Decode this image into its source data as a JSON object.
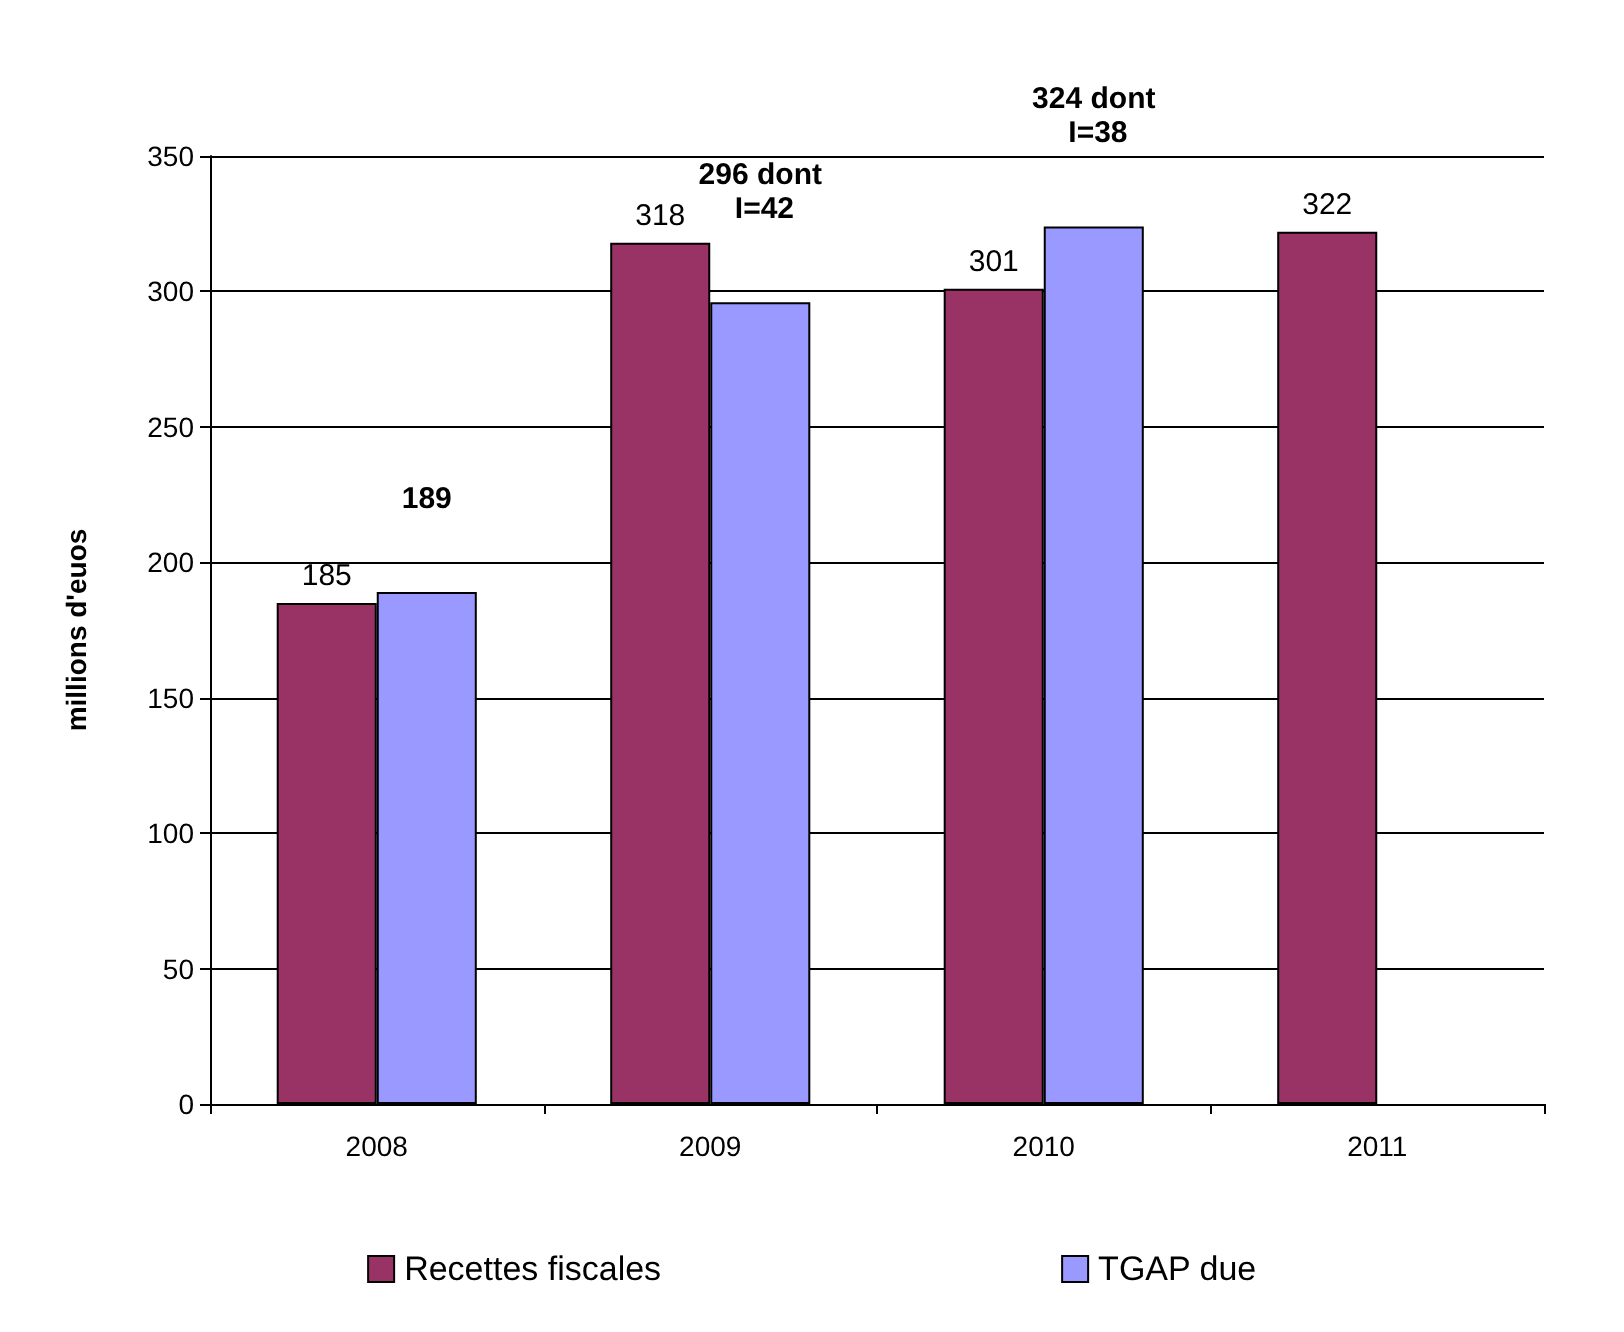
{
  "chart_data": {
    "type": "bar",
    "ylabel": "millions d'euos",
    "categories": [
      "2008",
      "2009",
      "2010",
      "2011"
    ],
    "series": [
      {
        "name": "Recettes fiscales",
        "color": "#993366",
        "values": [
          185,
          318,
          301,
          322
        ],
        "value_labels": [
          "185",
          "318",
          "301",
          "322"
        ]
      },
      {
        "name": "TGAP due",
        "color": "#9999ff",
        "values": [
          189,
          296,
          324,
          null
        ],
        "value_labels": [
          "189",
          "296 dont I=42",
          "324 dont I=38",
          null
        ]
      }
    ],
    "ylim": [
      0,
      350
    ],
    "yticks": [
      0,
      50,
      100,
      150,
      200,
      250,
      300,
      350
    ],
    "grid": "y",
    "legend": "bottom"
  }
}
